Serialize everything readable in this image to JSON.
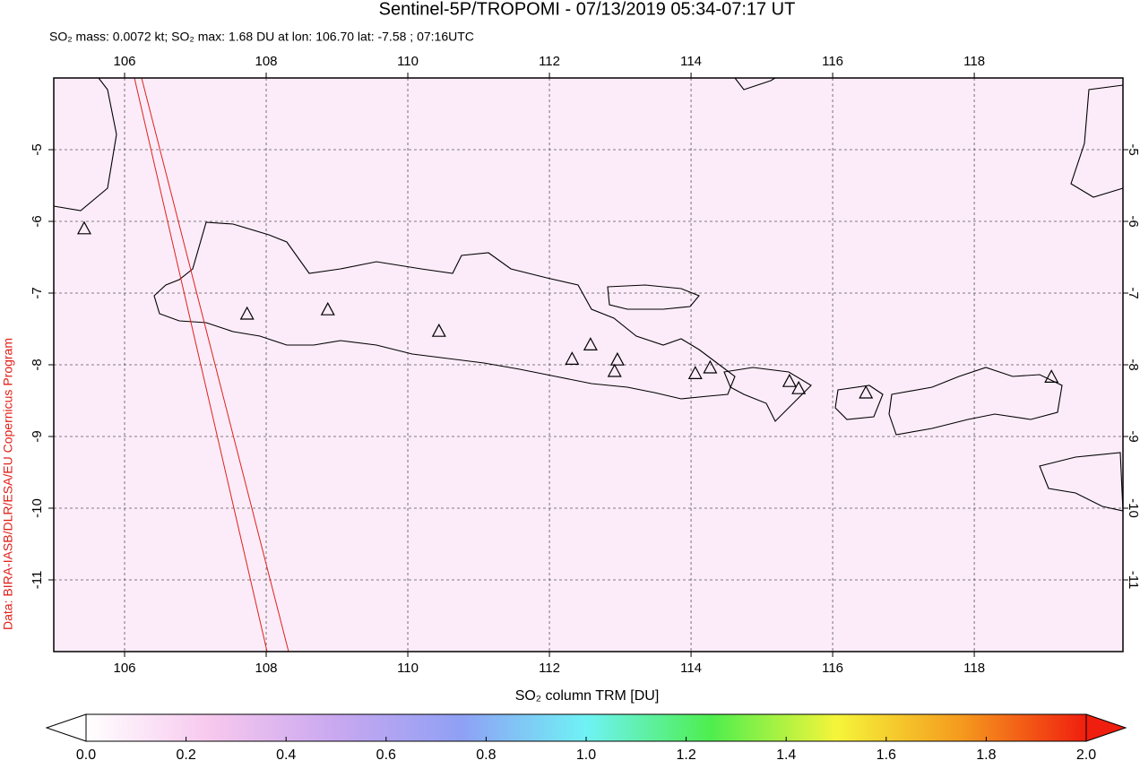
{
  "chart_data": {
    "type": "map",
    "title": "Sentinel-5P/TROPOMI - 07/13/2019 05:34-07:17 UT",
    "subtitle": "SO₂ mass: 0.0072 kt; SO₂ max: 1.68 DU at lon: 106.70 lat: -7.58 ; 07:16UTC",
    "credit": "Data: BIRA-IASB/DLR/ESA/EU Copernicus Program",
    "xlim": [
      105,
      120.1
    ],
    "ylim": [
      -12,
      -4
    ],
    "xticks": [
      106,
      108,
      110,
      112,
      114,
      116,
      118
    ],
    "yticks": [
      -5,
      -6,
      -7,
      -8,
      -9,
      -10,
      -11
    ],
    "grid": true,
    "volcano_lon": [
      105.43,
      107.73,
      108.87,
      110.44,
      112.32,
      112.58,
      112.96,
      112.92,
      114.06,
      114.27,
      115.39,
      115.52,
      116.47,
      119.09
    ],
    "volcano_lat": [
      -6.11,
      -7.3,
      -7.24,
      -7.54,
      -7.93,
      -7.73,
      -7.94,
      -8.1,
      -8.13,
      -8.05,
      -8.24,
      -8.34,
      -8.4,
      -8.18
    ],
    "colorbar": {
      "label": "SO₂ column TRM [DU]",
      "lim": [
        0,
        2
      ],
      "ticks": [
        {
          "value": 0,
          "label": "0.0"
        },
        {
          "value": 0.2,
          "label": "0.2"
        },
        {
          "value": 0.4,
          "label": "0.4"
        },
        {
          "value": 0.6,
          "label": "0.6"
        },
        {
          "value": 0.8,
          "label": "0.8"
        },
        {
          "value": 1,
          "label": "1.0"
        },
        {
          "value": 1.2,
          "label": "1.2"
        },
        {
          "value": 1.4,
          "label": "1.4"
        },
        {
          "value": 1.6,
          "label": "1.6"
        },
        {
          "value": 1.8,
          "label": "1.8"
        },
        {
          "value": 2,
          "label": "2.0"
        }
      ],
      "colors": [
        "#ffffff",
        "#f7c8ee",
        "#c9a8f0",
        "#8fa0f5",
        "#6ff2f5",
        "#4eee4e",
        "#f5f53a",
        "#f59a1e",
        "#f01e0e"
      ]
    }
  }
}
